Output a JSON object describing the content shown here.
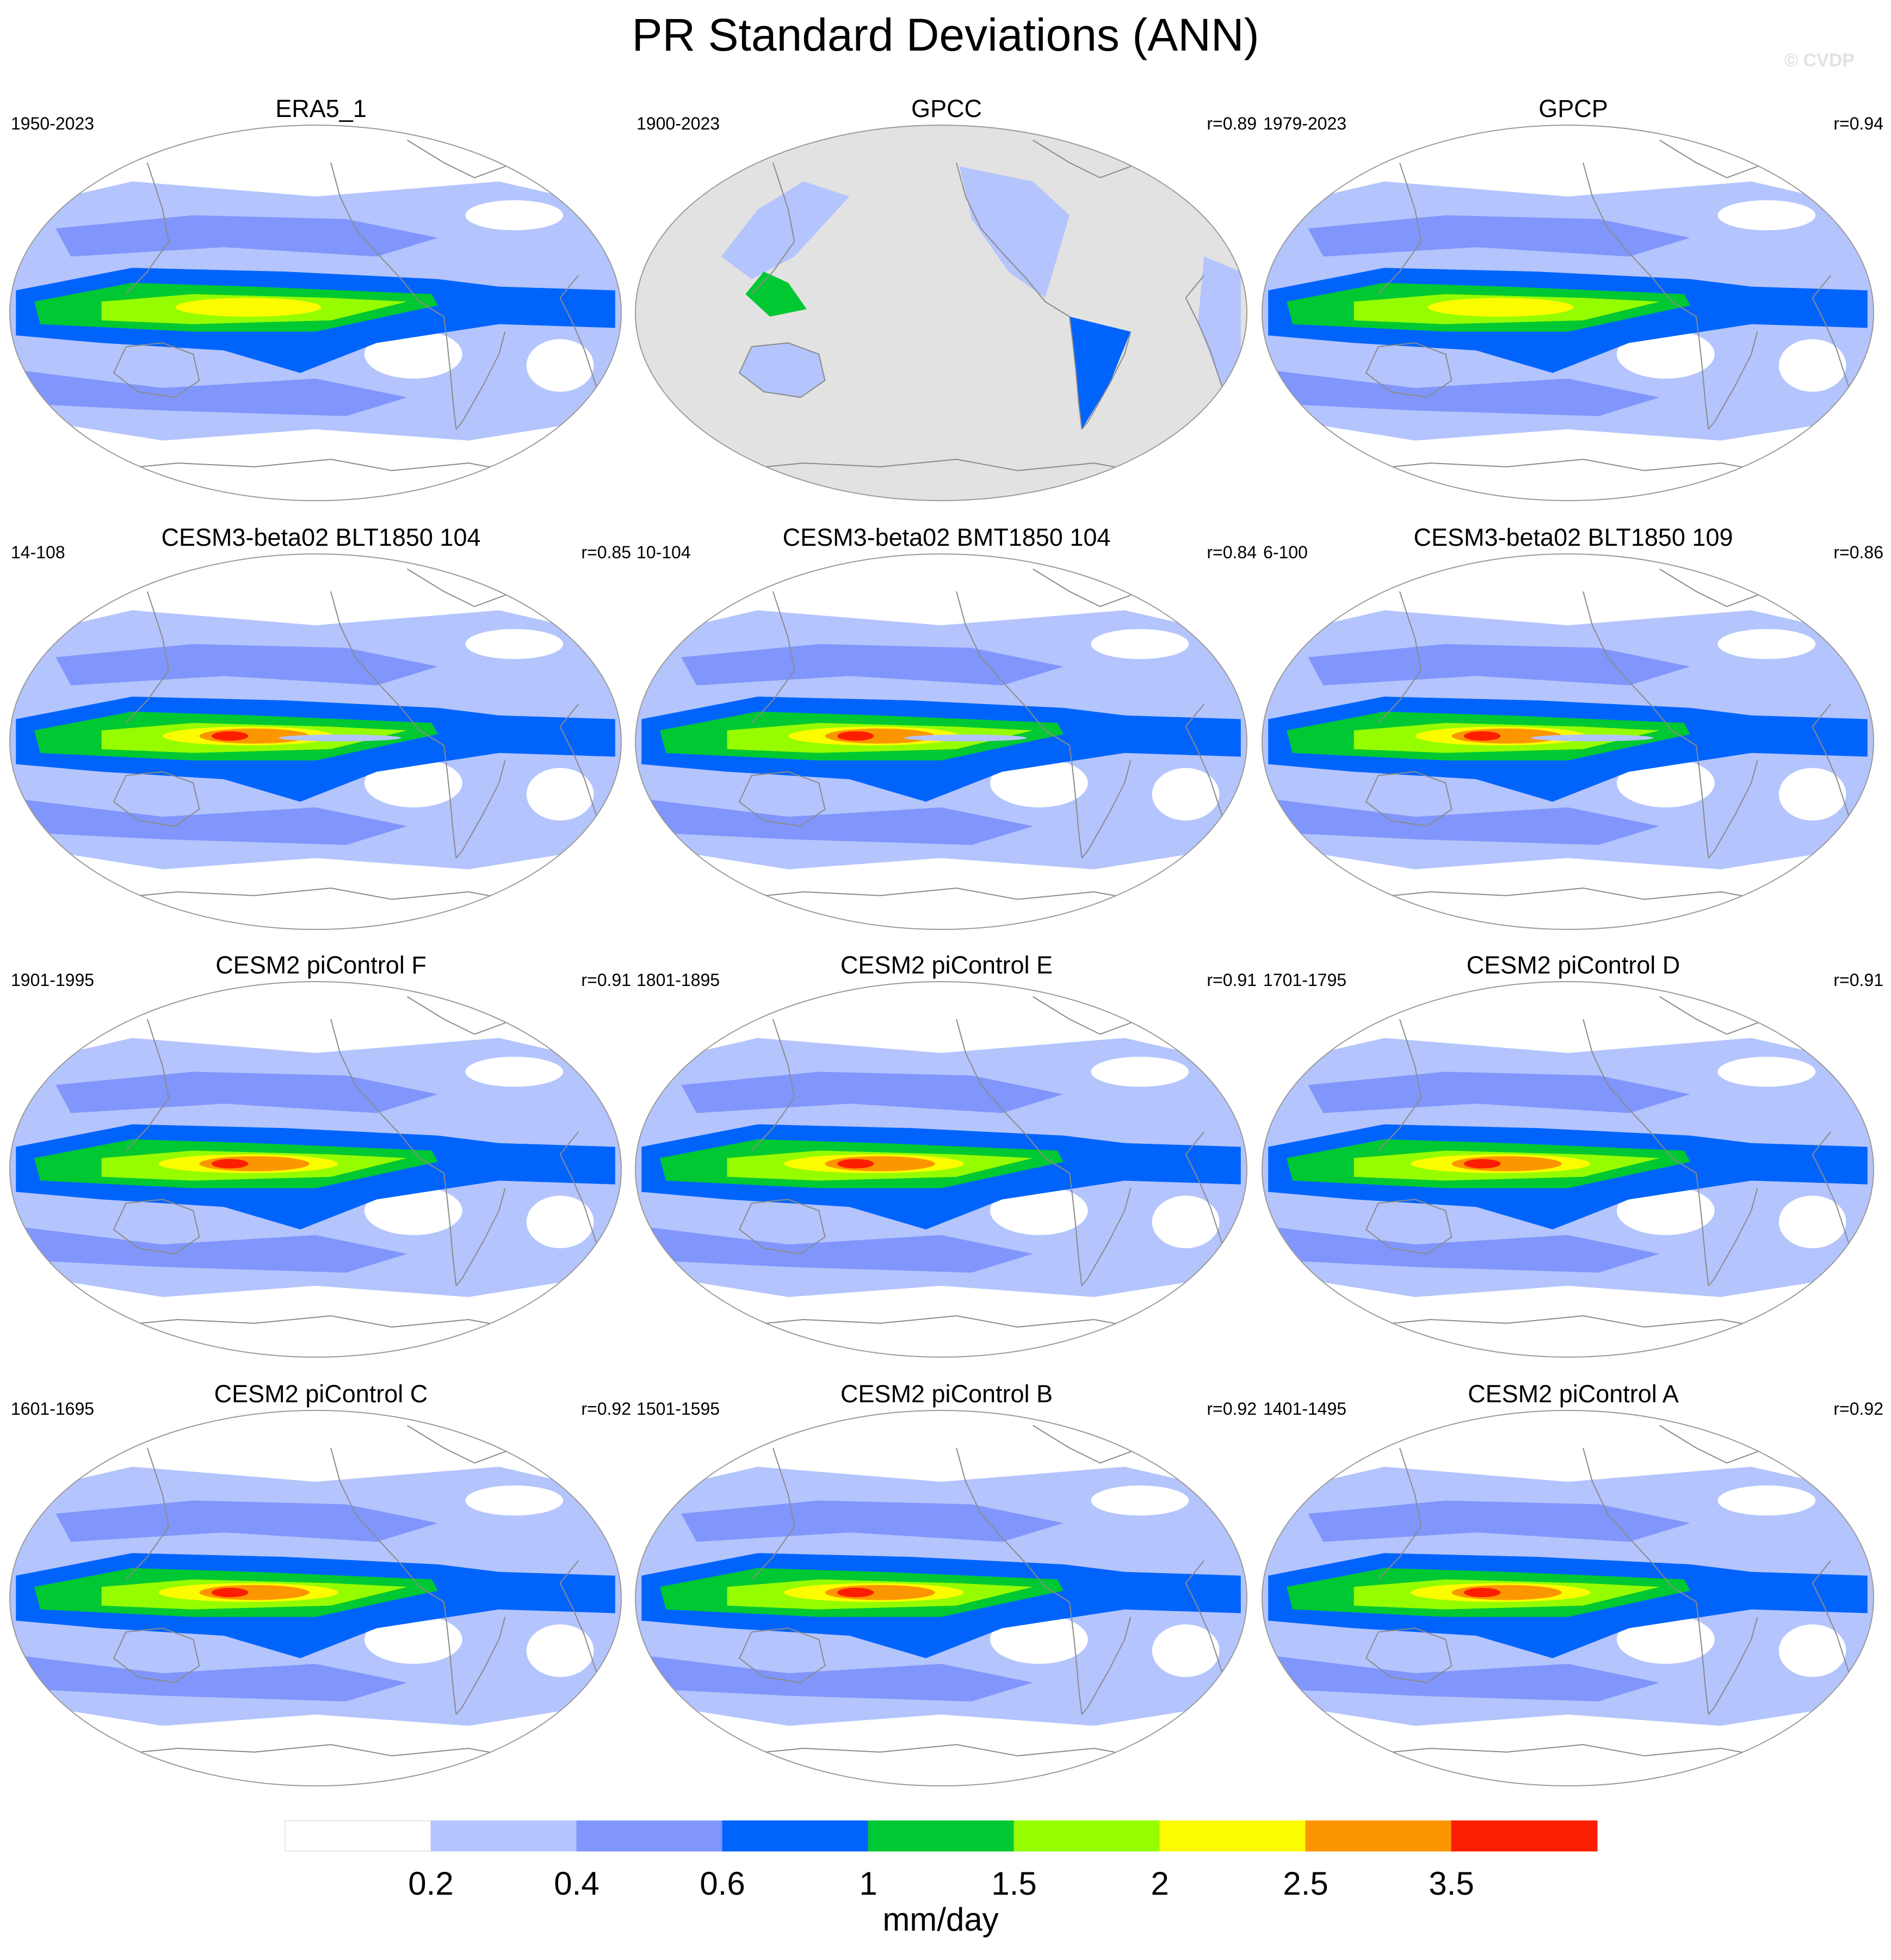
{
  "title": "PR Standard Deviations (ANN)",
  "watermark": "© CVDP",
  "panels": [
    {
      "title": "ERA5_1",
      "period": "1950-2023",
      "corr": "",
      "kind": "obs"
    },
    {
      "title": "GPCC",
      "period": "1900-2023",
      "corr": "r=0.89",
      "kind": "land"
    },
    {
      "title": "GPCP",
      "period": "1979-2023",
      "corr": "r=0.94",
      "kind": "obs"
    },
    {
      "title": "CESM3-beta02 BLT1850 104",
      "period": "14-108",
      "corr": "r=0.85",
      "kind": "cesm3"
    },
    {
      "title": "CESM3-beta02 BMT1850 104",
      "period": "10-104",
      "corr": "r=0.84",
      "kind": "cesm3"
    },
    {
      "title": "CESM3-beta02 BLT1850 109",
      "period": "6-100",
      "corr": "r=0.86",
      "kind": "cesm3"
    },
    {
      "title": "CESM2 piControl F",
      "period": "1901-1995",
      "corr": "r=0.91",
      "kind": "cesm2"
    },
    {
      "title": "CESM2 piControl E",
      "period": "1801-1895",
      "corr": "r=0.91",
      "kind": "cesm2"
    },
    {
      "title": "CESM2 piControl D",
      "period": "1701-1795",
      "corr": "r=0.91",
      "kind": "cesm2"
    },
    {
      "title": "CESM2 piControl C",
      "period": "1601-1695",
      "corr": "r=0.92",
      "kind": "cesm2"
    },
    {
      "title": "CESM2 piControl B",
      "period": "1501-1595",
      "corr": "r=0.92",
      "kind": "cesm2"
    },
    {
      "title": "CESM2 piControl A",
      "period": "1401-1495",
      "corr": "r=0.92",
      "kind": "cesm2"
    }
  ],
  "colorbar": {
    "colors": [
      "#ffffff",
      "#b4c4fc",
      "#8096fc",
      "#0064fc",
      "#00c832",
      "#96fc00",
      "#fcfc00",
      "#fc9600",
      "#fc1e00"
    ],
    "labels": [
      "0.2",
      "0.4",
      "0.6",
      "1",
      "1.5",
      "2",
      "2.5",
      "3.5"
    ],
    "units": "mm/day"
  },
  "colors": {
    "ocean_fill_land_only_panel": "#e2e2e2",
    "coastline": "#8a8a8a"
  }
}
